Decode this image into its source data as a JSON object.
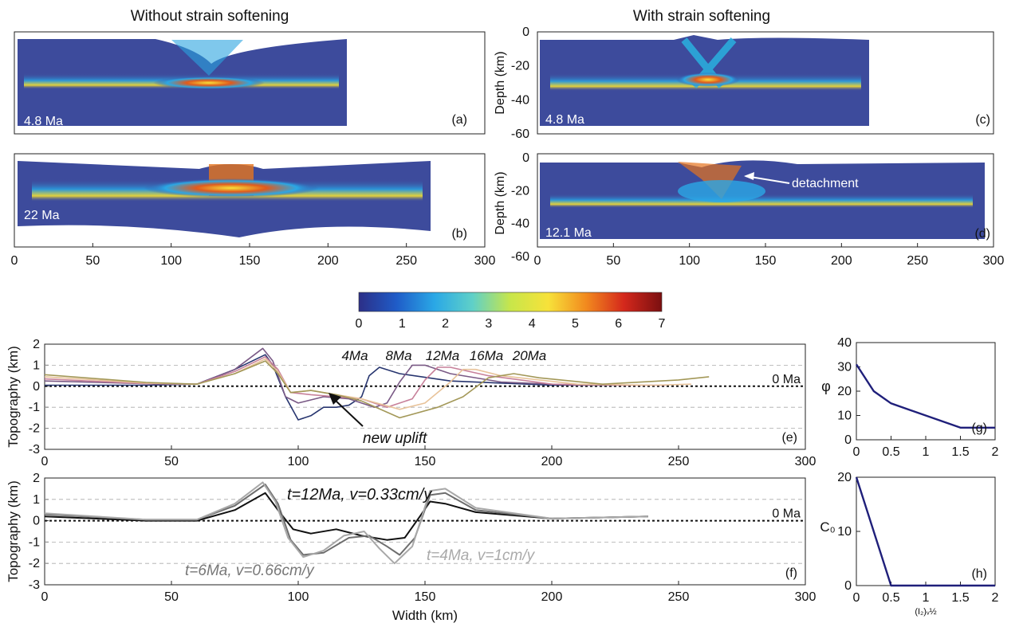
{
  "titles": {
    "left": "Without strain softening",
    "right": "With strain softening"
  },
  "model_panels": {
    "xticks": [
      "0",
      "50",
      "100",
      "150",
      "200",
      "250",
      "300"
    ],
    "depth_ylabel": "Depth (km)",
    "depth_ticks": [
      "0",
      "-20",
      "-40",
      "-60"
    ],
    "a": {
      "letter": "(a)",
      "age": "4.8 Ma"
    },
    "b": {
      "letter": "(b)",
      "age": "22 Ma"
    },
    "c": {
      "letter": "(c)",
      "age": "4.8 Ma"
    },
    "d": {
      "letter": "(d)",
      "age": "12.1 Ma",
      "annotation": "detachment"
    }
  },
  "colorbar": {
    "ticks": [
      "0",
      "1",
      "2",
      "3",
      "4",
      "5",
      "6",
      "7"
    ],
    "range": [
      0,
      7
    ],
    "colors": [
      "#2c2f87",
      "#1f5cc8",
      "#2aa8e6",
      "#5fd0c8",
      "#c8e64a",
      "#f7e23a",
      "#f28a1e",
      "#d4281c",
      "#7a0f10"
    ]
  },
  "chart_data": [
    {
      "type": "line",
      "panel": "(e)",
      "xlabel": "",
      "ylabel": "Topography (km)",
      "xlim": [
        0,
        300
      ],
      "ylim": [
        -3,
        2
      ],
      "xticks": [
        "0",
        "50",
        "100",
        "150",
        "200",
        "250",
        "300"
      ],
      "yticks": [
        "2",
        "1",
        "0",
        "-1",
        "-2",
        "-3"
      ],
      "reference_label": "0 Ma",
      "annotations": [
        "new uplift"
      ],
      "series": [
        {
          "name": "4Ma",
          "color": "#27356f",
          "x": [
            0,
            40,
            60,
            75,
            87,
            90,
            95,
            100,
            105,
            110,
            115,
            120,
            125,
            128,
            132,
            140,
            160,
            200,
            225
          ],
          "y": [
            0.05,
            0.05,
            0.1,
            0.8,
            1.5,
            1.0,
            -0.5,
            -1.6,
            -1.4,
            -1.0,
            -1.0,
            -0.9,
            -0.5,
            0.5,
            0.9,
            0.6,
            0.25,
            0.05,
            0.05
          ]
        },
        {
          "name": "8Ma",
          "color": "#7a5a86",
          "x": [
            0,
            40,
            60,
            75,
            86,
            90,
            95,
            100,
            110,
            120,
            130,
            135,
            140,
            145,
            150,
            160,
            180,
            210,
            230
          ],
          "y": [
            0.25,
            0.12,
            0.1,
            0.8,
            1.8,
            1.2,
            -0.5,
            -0.8,
            -0.5,
            -0.6,
            -1.0,
            -0.8,
            0.2,
            1.0,
            1.0,
            0.6,
            0.2,
            0.05,
            0.05
          ]
        },
        {
          "name": "12Ma",
          "color": "#c7809a",
          "x": [
            0,
            40,
            60,
            75,
            87,
            92,
            97,
            105,
            115,
            125,
            135,
            145,
            150,
            155,
            160,
            175,
            200,
            230,
            245
          ],
          "y": [
            0.35,
            0.12,
            0.1,
            0.7,
            1.4,
            0.8,
            -0.3,
            -0.4,
            -0.5,
            -0.6,
            -1.0,
            -0.6,
            0.3,
            0.9,
            0.9,
            0.5,
            0.1,
            0.05,
            0.05
          ]
        },
        {
          "name": "16Ma",
          "color": "#e8c39a",
          "x": [
            0,
            40,
            60,
            75,
            87,
            92,
            97,
            105,
            115,
            125,
            140,
            150,
            160,
            165,
            170,
            180,
            210,
            240,
            255
          ],
          "y": [
            0.45,
            0.15,
            0.1,
            0.6,
            1.3,
            0.7,
            -0.3,
            -0.2,
            -0.4,
            -0.6,
            -1.1,
            -0.8,
            0.2,
            0.8,
            0.8,
            0.5,
            0.1,
            0.05,
            0.1
          ]
        },
        {
          "name": "20Ma",
          "color": "#a39858",
          "x": [
            0,
            40,
            60,
            75,
            87,
            92,
            97,
            105,
            115,
            125,
            140,
            155,
            165,
            175,
            185,
            195,
            220,
            250,
            262
          ],
          "y": [
            0.55,
            0.18,
            0.1,
            0.6,
            1.2,
            0.6,
            -0.3,
            -0.2,
            -0.4,
            -0.7,
            -1.5,
            -1.0,
            -0.5,
            0.4,
            0.6,
            0.4,
            0.1,
            0.3,
            0.45
          ]
        }
      ]
    },
    {
      "type": "line",
      "panel": "(f)",
      "xlabel": "Width (km)",
      "ylabel": "Topography (km)",
      "xlim": [
        0,
        300
      ],
      "ylim": [
        -3,
        2
      ],
      "xticks": [
        "0",
        "50",
        "100",
        "150",
        "200",
        "250",
        "300"
      ],
      "yticks": [
        "2",
        "1",
        "0",
        "-1",
        "-2",
        "-3"
      ],
      "reference_label": "0 Ma",
      "series": [
        {
          "name": "t=12Ma, v=0.33cm/y",
          "color": "#111111",
          "label_color": "#111111",
          "x": [
            0,
            40,
            60,
            75,
            87,
            92,
            98,
            105,
            115,
            125,
            135,
            142,
            148,
            152,
            158,
            170,
            200,
            238
          ],
          "y": [
            0.2,
            0.0,
            0.0,
            0.5,
            1.3,
            0.5,
            -0.4,
            -0.6,
            -0.4,
            -0.7,
            -0.9,
            -0.8,
            0.2,
            0.9,
            0.8,
            0.4,
            0.1,
            0.2
          ]
        },
        {
          "name": "t=6Ma, v=0.66cm/y",
          "color": "#6e6e6e",
          "label_color": "#777777",
          "x": [
            0,
            40,
            60,
            75,
            87,
            92,
            97,
            102,
            110,
            120,
            128,
            135,
            140,
            146,
            152,
            158,
            170,
            200,
            238
          ],
          "y": [
            0.3,
            0.05,
            0.05,
            0.7,
            1.7,
            0.8,
            -0.9,
            -1.6,
            -1.5,
            -0.8,
            -0.7,
            -1.2,
            -1.6,
            -0.8,
            1.2,
            1.3,
            0.5,
            0.1,
            0.2
          ]
        },
        {
          "name": "t=4Ma, v=1cm/y",
          "color": "#a8a8a8",
          "label_color": "#aaaaaa",
          "x": [
            0,
            40,
            60,
            75,
            86,
            91,
            96,
            102,
            110,
            118,
            126,
            132,
            138,
            145,
            152,
            158,
            170,
            200,
            238
          ],
          "y": [
            0.35,
            0.05,
            0.05,
            0.8,
            1.8,
            0.9,
            -0.8,
            -1.7,
            -1.4,
            -0.7,
            -0.5,
            -1.3,
            -2.0,
            -1.2,
            1.4,
            1.5,
            0.6,
            0.1,
            0.2
          ]
        }
      ]
    },
    {
      "type": "line",
      "panel": "(g)",
      "ylabel": "φ",
      "xlim": [
        0,
        2
      ],
      "ylim": [
        0,
        40
      ],
      "xticks": [
        "0",
        "0.5",
        "1",
        "1.5",
        "2"
      ],
      "yticks": [
        "40",
        "30",
        "20",
        "10",
        "0"
      ],
      "series": [
        {
          "color": "#1f1f7a",
          "x": [
            0,
            0.25,
            0.5,
            1.5,
            2
          ],
          "y": [
            31,
            20,
            15,
            5,
            5
          ]
        }
      ]
    },
    {
      "type": "line",
      "panel": "(h)",
      "ylabel": "C₀",
      "xlabel": "(I₂)ᵥ½",
      "xlim": [
        0,
        2
      ],
      "ylim": [
        0,
        20
      ],
      "xticks": [
        "0",
        "0.5",
        "1",
        "1.5",
        "2"
      ],
      "yticks": [
        "20",
        "10",
        "0"
      ],
      "series": [
        {
          "color": "#1f1f7a",
          "x": [
            0,
            0.5,
            2
          ],
          "y": [
            20,
            0,
            0
          ]
        }
      ]
    }
  ]
}
